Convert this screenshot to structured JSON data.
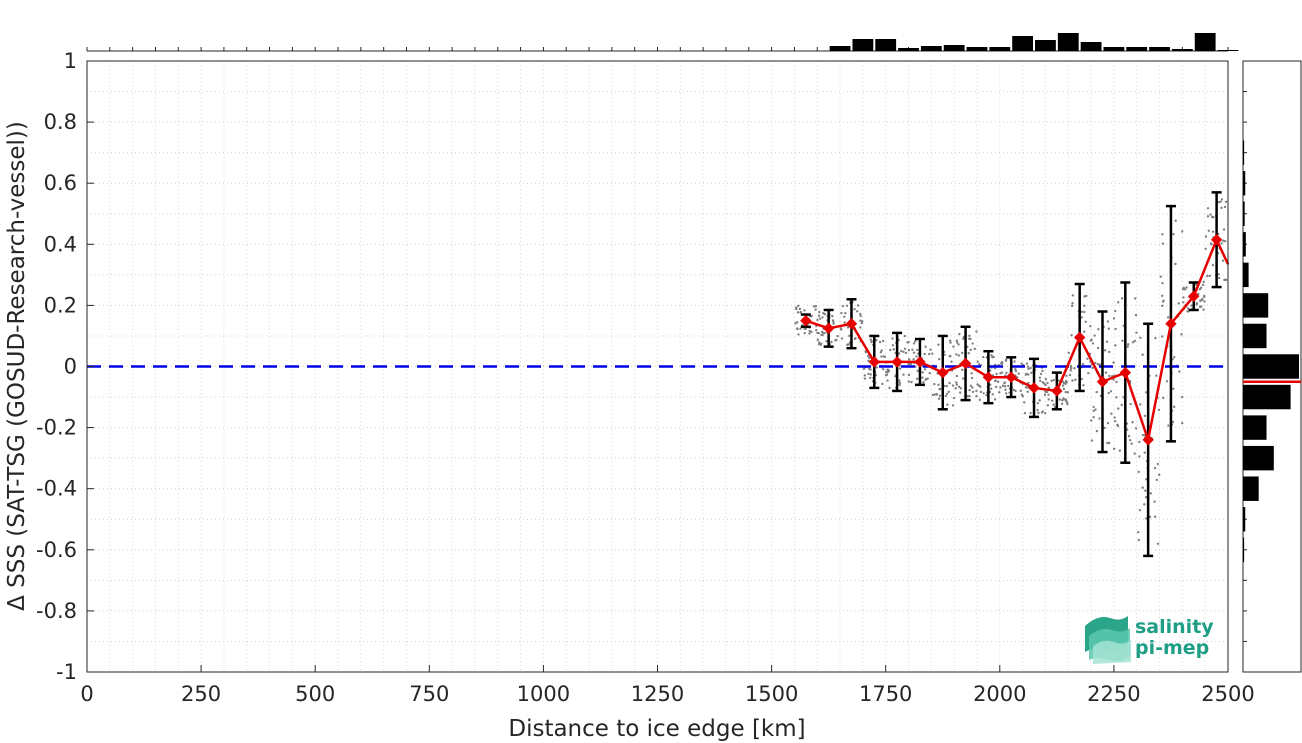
{
  "chart_data": {
    "type": "line",
    "xlabel": "Distance to ice edge [km]",
    "ylabel": "Δ SSS (SAT-TSG (GOSUD-Research-vessel))",
    "xlim": [
      0,
      2500
    ],
    "ylim": [
      -1,
      1
    ],
    "x_ticks": [
      "0",
      "250",
      "500",
      "750",
      "1000",
      "1250",
      "1500",
      "1750",
      "2000",
      "2250",
      "2500"
    ],
    "y_ticks": [
      "-1",
      "-0.8",
      "-0.6",
      "-0.4",
      "-0.2",
      "0",
      "0.2",
      "0.4",
      "0.6",
      "0.8",
      "1"
    ],
    "grid": "dotted",
    "zero_line": {
      "y": 0,
      "color": "#0000e6",
      "style": "dashed"
    },
    "series": [
      {
        "color": "#e60000",
        "x": [
          1575,
          1625,
          1675,
          1725,
          1775,
          1825,
          1875,
          1925,
          1975,
          2025,
          2075,
          2125,
          2175,
          2225,
          2275,
          2325,
          2375,
          2425,
          2475,
          2500
        ],
        "y": [
          0.15,
          0.125,
          0.14,
          0.015,
          0.015,
          0.015,
          -0.02,
          0.01,
          -0.035,
          -0.035,
          -0.07,
          -0.08,
          0.095,
          -0.05,
          -0.02,
          -0.24,
          0.14,
          0.23,
          0.415,
          0.335
        ],
        "err": [
          0.02,
          0.06,
          0.08,
          0.085,
          0.095,
          0.075,
          0.12,
          0.12,
          0.085,
          0.065,
          0.095,
          0.06,
          0.175,
          0.23,
          0.295,
          0.38,
          0.385,
          0.045,
          0.155,
          null
        ]
      }
    ],
    "top_histogram": {
      "bin_start": 1575,
      "bin_width": 50,
      "counts": [
        0,
        0.25,
        0.6,
        0.6,
        0.15,
        0.25,
        0.3,
        0.2,
        0.2,
        0.75,
        0.55,
        0.9,
        0.45,
        0.2,
        0.2,
        0.2,
        0.1,
        0.9,
        0.05
      ]
    },
    "right_histogram": {
      "centers": [
        0.7,
        0.6,
        0.5,
        0.4,
        0.3,
        0.2,
        0.1,
        0.0,
        -0.1,
        -0.2,
        -0.3,
        -0.4,
        -0.5,
        -0.6
      ],
      "counts": [
        0.02,
        0.04,
        0.03,
        0.05,
        0.1,
        0.45,
        0.42,
        1.0,
        0.85,
        0.42,
        0.55,
        0.28,
        0.04,
        0.02
      ],
      "median": -0.05,
      "median_color": "#e60000"
    },
    "scatter_color": "#808080"
  },
  "logo": {
    "line1": "salinity",
    "line2": "pi-mep"
  }
}
